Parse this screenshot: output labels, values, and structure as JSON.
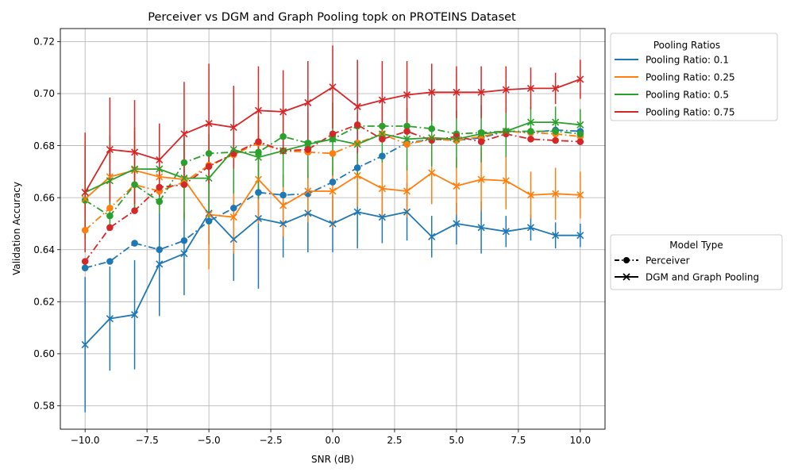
{
  "chart_data": {
    "type": "line",
    "title": "Perceiver vs DGM and Graph Pooling topk on PROTEINS Dataset",
    "xlabel": "SNR (dB)",
    "ylabel": "Validation Accuracy",
    "xlim": [
      -11.0,
      11.0
    ],
    "ylim": [
      0.571,
      0.725
    ],
    "xticks": [
      -10.0,
      -7.5,
      -5.0,
      -2.5,
      0.0,
      2.5,
      5.0,
      7.5,
      10.0
    ],
    "xtick_labels": [
      "−10.0",
      "−7.5",
      "−5.0",
      "−2.5",
      "0.0",
      "2.5",
      "5.0",
      "7.5",
      "10.0"
    ],
    "yticks": [
      0.58,
      0.6,
      0.62,
      0.64,
      0.66,
      0.68,
      0.7,
      0.72
    ],
    "ytick_labels": [
      "0.58",
      "0.60",
      "0.62",
      "0.64",
      "0.66",
      "0.68",
      "0.70",
      "0.72"
    ],
    "grid": true,
    "x": [
      -10,
      -9,
      -8,
      -7,
      -6,
      -5,
      -4,
      -3,
      -2,
      -1,
      0,
      1,
      2,
      3,
      4,
      5,
      6,
      7,
      8,
      9,
      10
    ],
    "legend_pooling": {
      "title": "Pooling Ratios",
      "placement": "outside-top-right",
      "entries": [
        {
          "label": "Pooling Ratio: 0.1",
          "color": "#1f77b4"
        },
        {
          "label": "Pooling Ratio: 0.25",
          "color": "#ff7f0e"
        },
        {
          "label": "Pooling Ratio: 0.5",
          "color": "#2ca02c"
        },
        {
          "label": "Pooling Ratio: 0.75",
          "color": "#d62728"
        }
      ]
    },
    "legend_model": {
      "title": "Model Type",
      "placement": "outside-middle-right",
      "entries": [
        {
          "label": "Perceiver",
          "marker": "circle",
          "linestyle": "dashdot"
        },
        {
          "label": "DGM and Graph Pooling",
          "marker": "x",
          "linestyle": "solid"
        }
      ]
    },
    "series": [
      {
        "model": "Perceiver",
        "ratio": "0.1",
        "color": "#1f77b4",
        "marker": "circle",
        "linestyle": "dashdot",
        "values": [
          0.633,
          0.6355,
          0.6425,
          0.64,
          0.6435,
          0.651,
          0.656,
          0.662,
          0.661,
          0.6615,
          0.666,
          0.6715,
          0.676,
          0.681,
          0.6825,
          0.682,
          0.683,
          0.6855,
          0.685,
          0.686,
          0.6855
        ]
      },
      {
        "model": "Perceiver",
        "ratio": "0.25",
        "color": "#ff7f0e",
        "marker": "circle",
        "linestyle": "dashdot",
        "values": [
          0.6475,
          0.656,
          0.665,
          0.6625,
          0.666,
          0.6725,
          0.6765,
          0.681,
          0.678,
          0.6775,
          0.677,
          0.681,
          0.6845,
          0.6805,
          0.6825,
          0.682,
          0.6835,
          0.6855,
          0.685,
          0.6845,
          0.6835
        ]
      },
      {
        "model": "Perceiver",
        "ratio": "0.5",
        "color": "#2ca02c",
        "marker": "circle",
        "linestyle": "dashdot",
        "values": [
          0.659,
          0.653,
          0.665,
          0.6585,
          0.6735,
          0.677,
          0.6775,
          0.6775,
          0.6835,
          0.681,
          0.6825,
          0.6875,
          0.6875,
          0.6875,
          0.6865,
          0.6845,
          0.685,
          0.6855,
          0.6855,
          0.6855,
          0.6845
        ]
      },
      {
        "model": "Perceiver",
        "ratio": "0.75",
        "color": "#d62728",
        "marker": "circle",
        "linestyle": "dashdot",
        "values": [
          0.6355,
          0.6485,
          0.655,
          0.664,
          0.665,
          0.672,
          0.677,
          0.6815,
          0.678,
          0.6785,
          0.6845,
          0.688,
          0.6825,
          0.6855,
          0.682,
          0.6835,
          0.6815,
          0.6845,
          0.6825,
          0.682,
          0.6815
        ]
      },
      {
        "model": "DGM and Graph Pooling",
        "ratio": "0.1",
        "color": "#1f77b4",
        "marker": "x",
        "linestyle": "solid",
        "values": [
          0.6035,
          0.6135,
          0.615,
          0.6345,
          0.6385,
          0.654,
          0.644,
          0.652,
          0.65,
          0.654,
          0.65,
          0.6545,
          0.6525,
          0.6545,
          0.645,
          0.65,
          0.6485,
          0.647,
          0.6485,
          0.6455,
          0.6455
        ],
        "errors": [
          0.026,
          0.02,
          0.021,
          0.02,
          0.016,
          0.012,
          0.016,
          0.027,
          0.013,
          0.015,
          0.011,
          0.014,
          0.01,
          0.011,
          0.008,
          0.008,
          0.01,
          0.006,
          0.005,
          0.005,
          0.0045
        ]
      },
      {
        "model": "DGM and Graph Pooling",
        "ratio": "0.25",
        "color": "#ff7f0e",
        "marker": "x",
        "linestyle": "solid",
        "values": [
          0.6595,
          0.668,
          0.6705,
          0.668,
          0.667,
          0.6535,
          0.6525,
          0.667,
          0.657,
          0.6625,
          0.6625,
          0.6685,
          0.6635,
          0.6625,
          0.6695,
          0.6645,
          0.667,
          0.6665,
          0.661,
          0.6615,
          0.661
        ],
        "errors": [
          0.015,
          0.016,
          0.015,
          0.014,
          0.015,
          0.021,
          0.014,
          0.017,
          0.012,
          0.012,
          0.014,
          0.012,
          0.011,
          0.01,
          0.012,
          0.011,
          0.012,
          0.011,
          0.009,
          0.01,
          0.009
        ]
      },
      {
        "model": "DGM and Graph Pooling",
        "ratio": "0.5",
        "color": "#2ca02c",
        "marker": "x",
        "linestyle": "solid",
        "values": [
          0.662,
          0.6665,
          0.671,
          0.671,
          0.6675,
          0.6675,
          0.6785,
          0.6755,
          0.678,
          0.6805,
          0.6825,
          0.6805,
          0.6845,
          0.6825,
          0.683,
          0.6825,
          0.6845,
          0.6855,
          0.689,
          0.689,
          0.688
        ],
        "errors": [
          0.018,
          0.017,
          0.016,
          0.017,
          0.016,
          0.017,
          0.017,
          0.016,
          0.014,
          0.013,
          0.014,
          0.012,
          0.011,
          0.012,
          0.011,
          0.011,
          0.011,
          0.01,
          0.006,
          0.006,
          0.006
        ]
      },
      {
        "model": "DGM and Graph Pooling",
        "ratio": "0.75",
        "color": "#d62728",
        "marker": "x",
        "linestyle": "solid",
        "values": [
          0.662,
          0.6785,
          0.6775,
          0.6745,
          0.6845,
          0.6885,
          0.687,
          0.6935,
          0.693,
          0.6965,
          0.7025,
          0.695,
          0.6975,
          0.6995,
          0.7005,
          0.7005,
          0.7005,
          0.7015,
          0.702,
          0.702,
          0.7055
        ],
        "errors": [
          0.023,
          0.02,
          0.02,
          0.014,
          0.02,
          0.023,
          0.016,
          0.017,
          0.016,
          0.016,
          0.016,
          0.018,
          0.015,
          0.013,
          0.011,
          0.01,
          0.01,
          0.009,
          0.008,
          0.006,
          0.0075
        ]
      }
    ]
  }
}
